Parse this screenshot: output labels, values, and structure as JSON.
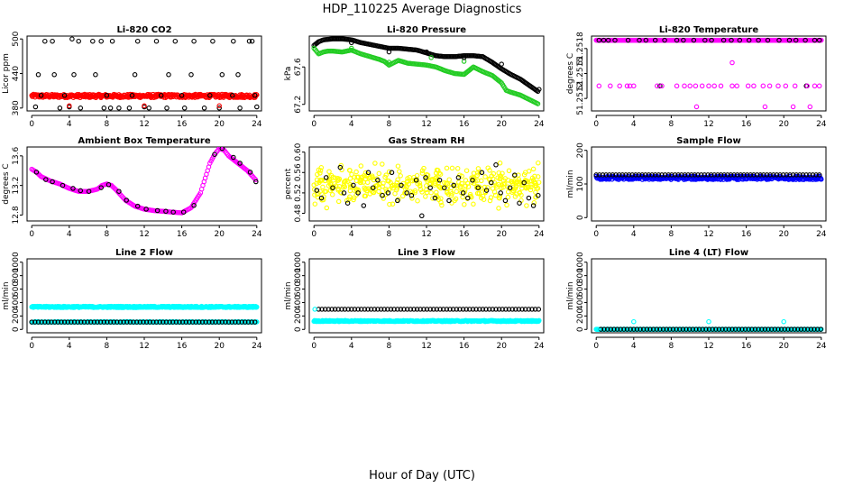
{
  "figure": {
    "title": "HDP_110225  Average Diagnostics",
    "xlabel": "Hour of Day (UTC)"
  },
  "colors": {
    "black": "#000000",
    "red": "#ff0000",
    "green": "#22cc22",
    "magenta": "#ff00ff",
    "yellow": "#ffff00",
    "blue": "#0000ff",
    "cyan": "#00ffff"
  },
  "chart_data": [
    {
      "type": "scatter",
      "title": "Li-820 CO2",
      "ylabel": "Licor ppm",
      "xticks": [
        0,
        4,
        8,
        12,
        16,
        20,
        24
      ],
      "yticks": [
        380,
        440,
        500
      ],
      "ytick_labels": [
        "380",
        "440",
        "500"
      ],
      "xlim": [
        -0.5,
        24.5
      ],
      "ylim": [
        375,
        505
      ],
      "series": [
        {
          "color": "red",
          "kind": "band",
          "x_start": 0,
          "x_end": 24,
          "y": 401,
          "jitter": 3
        },
        {
          "color": "black",
          "kind": "points",
          "x": [
            0.4,
            1.4,
            2.2,
            3.0,
            4.0,
            4.3,
            5.0,
            5.2,
            6.5,
            7.4,
            7.7,
            8.4,
            8.6,
            9.3,
            10.4,
            11.3,
            12.0,
            12.5,
            13.3,
            14.4,
            15.3,
            16.3,
            17.3,
            18.4,
            19.3,
            20.0,
            21.5,
            22.2,
            23.2,
            23.5,
            24.0,
            1.0,
            3.5,
            8.0,
            10.7,
            13.8,
            16.0,
            19.0,
            21.4,
            23.8,
            0.7,
            2.4,
            4.5,
            6.8,
            11.0,
            14.6,
            17.0,
            20.3,
            22.0
          ],
          "y": [
            382,
            496,
            496,
            380,
            382,
            500,
            496,
            380,
            496,
            496,
            380,
            380,
            496,
            380,
            380,
            496,
            382,
            380,
            496,
            380,
            496,
            380,
            496,
            380,
            496,
            380,
            496,
            380,
            496,
            496,
            382,
            402,
            402,
            402,
            402,
            402,
            402,
            402,
            402,
            402,
            438,
            438,
            438,
            438,
            438,
            438,
            438,
            438,
            438
          ]
        },
        {
          "color": "red",
          "kind": "points",
          "x": [
            4.0,
            12.0,
            20.0
          ],
          "y": [
            384,
            384,
            384
          ]
        }
      ]
    },
    {
      "type": "scatter",
      "title": "Li-820 Pressure",
      "ylabel": "kPa",
      "xticks": [
        0,
        4,
        8,
        12,
        16,
        20,
        24
      ],
      "yticks": [
        67.2,
        67.6
      ],
      "ytick_labels": [
        "67.2",
        "67.6"
      ],
      "xlim": [
        -0.5,
        24.5
      ],
      "ylim": [
        67.13,
        67.93
      ],
      "series": [
        {
          "color": "black",
          "kind": "line",
          "x": [
            0,
            0.5,
            1,
            2,
            3,
            4,
            5,
            6,
            7,
            8,
            9,
            10,
            11,
            12,
            13,
            14,
            15,
            16,
            17,
            18,
            19,
            20,
            21,
            22,
            23,
            24
          ],
          "y": [
            67.83,
            67.87,
            67.89,
            67.9,
            67.9,
            67.89,
            67.86,
            67.84,
            67.82,
            67.8,
            67.8,
            67.79,
            67.78,
            67.75,
            67.72,
            67.71,
            67.71,
            67.72,
            67.72,
            67.71,
            67.65,
            67.58,
            67.52,
            67.47,
            67.4,
            67.33
          ]
        },
        {
          "color": "green",
          "kind": "line",
          "x": [
            0,
            0.5,
            1,
            1.5,
            2,
            3,
            4,
            5,
            6,
            7,
            7.5,
            8,
            9,
            10,
            11,
            12,
            13,
            14,
            15,
            16,
            17,
            18,
            19,
            20,
            20.5,
            21,
            22,
            23,
            24
          ],
          "y": [
            67.8,
            67.74,
            67.76,
            67.77,
            67.77,
            67.76,
            67.78,
            67.74,
            67.71,
            67.68,
            67.66,
            67.62,
            67.67,
            67.64,
            67.63,
            67.62,
            67.6,
            67.56,
            67.53,
            67.52,
            67.6,
            67.55,
            67.51,
            67.43,
            67.35,
            67.33,
            67.3,
            67.25,
            67.2
          ]
        },
        {
          "color": "green",
          "kind": "points",
          "x": [
            4.0,
            8.0,
            12.5,
            16.0
          ],
          "y": [
            67.8,
            67.65,
            67.7,
            67.66
          ]
        },
        {
          "color": "black",
          "kind": "points",
          "x": [
            4.0,
            8.0,
            12.0,
            16.0,
            20.0,
            24.0
          ],
          "y": [
            67.86,
            67.76,
            67.76,
            67.7,
            67.63,
            67.36
          ]
        }
      ]
    },
    {
      "type": "scatter",
      "title": "Li-820 Temperature",
      "ylabel": "degrees C",
      "xticks": [
        0,
        4,
        8,
        12,
        16,
        20,
        24
      ],
      "yticks": [
        51.2512,
        51.2515,
        51.2518
      ],
      "ytick_labels": [
        "51.2512",
        "51.2515",
        "51.2518"
      ],
      "xlim": [
        -0.5,
        24.5
      ],
      "ylim": [
        51.25105,
        51.25195
      ],
      "series": [
        {
          "color": "magenta",
          "kind": "band",
          "x_start": 0,
          "x_end": 24,
          "y": 51.2519,
          "jitter": 0
        },
        {
          "color": "black",
          "kind": "points",
          "x": [
            0.3,
            0.8,
            1.3,
            2.0,
            3.4,
            4.6,
            5.3,
            6.3,
            7.3,
            8.6,
            9.3,
            10.4,
            11.6,
            12.3,
            13.6,
            14.4,
            15.3,
            16.3,
            17.3,
            18.3,
            19.5,
            20.6,
            21.3,
            22.3,
            23.3,
            23.8,
            6.8,
            22.4
          ],
          "y": [
            51.2519,
            51.2519,
            51.2519,
            51.2519,
            51.2519,
            51.2519,
            51.2519,
            51.2519,
            51.2519,
            51.2519,
            51.2519,
            51.2519,
            51.2519,
            51.2519,
            51.2519,
            51.2519,
            51.2519,
            51.2519,
            51.2519,
            51.2519,
            51.2519,
            51.2519,
            51.2519,
            51.2519,
            51.2519,
            51.2519,
            51.25135,
            51.25135
          ]
        },
        {
          "color": "magenta",
          "kind": "points",
          "x": [
            0.3,
            1.5,
            2.5,
            3.3,
            3.6,
            4.0,
            6.5,
            7.0,
            8.6,
            9.4,
            10.0,
            10.6,
            11.3,
            12.0,
            12.6,
            13.3,
            14.5,
            15.0,
            16.2,
            16.8,
            17.8,
            18.5,
            19.4,
            20.2,
            21.2,
            22.5,
            23.3,
            23.8,
            10.7,
            14.5,
            18.0,
            21.0,
            22.8
          ],
          "y": [
            51.25135,
            51.25135,
            51.25135,
            51.25135,
            51.25135,
            51.25135,
            51.25135,
            51.25135,
            51.25135,
            51.25135,
            51.25135,
            51.25135,
            51.25135,
            51.25135,
            51.25135,
            51.25135,
            51.25135,
            51.25135,
            51.25135,
            51.25135,
            51.25135,
            51.25135,
            51.25135,
            51.25135,
            51.25135,
            51.25135,
            51.25135,
            51.25135,
            51.2511,
            51.25163,
            51.2511,
            51.2511,
            51.2511
          ]
        }
      ]
    },
    {
      "type": "scatter",
      "title": "Ambient Box Temperature",
      "ylabel": "degrees C",
      "xticks": [
        0,
        4,
        8,
        12,
        16,
        20,
        24
      ],
      "yticks": [
        12.8,
        13.2,
        13.6
      ],
      "ytick_labels": [
        "12.8",
        "13.2",
        "13.6"
      ],
      "xlim": [
        -0.5,
        24.5
      ],
      "ylim": [
        12.72,
        13.72
      ],
      "series": [
        {
          "color": "magenta",
          "kind": "line",
          "x": [
            0,
            0.5,
            1,
            2,
            3,
            4,
            5,
            6,
            7,
            7.5,
            8,
            8.5,
            9,
            10,
            11,
            12,
            13,
            14,
            15,
            16,
            17,
            17.5,
            18,
            18.5,
            19,
            19.5,
            20,
            20.5,
            21,
            22,
            23,
            24
          ],
          "y": [
            13.42,
            13.38,
            13.32,
            13.26,
            13.22,
            13.16,
            13.12,
            13.12,
            13.15,
            13.2,
            13.22,
            13.2,
            13.14,
            13.0,
            12.92,
            12.88,
            12.86,
            12.85,
            12.84,
            12.83,
            12.9,
            13.0,
            13.1,
            13.3,
            13.5,
            13.62,
            13.7,
            13.68,
            13.6,
            13.5,
            13.4,
            13.26
          ]
        },
        {
          "color": "black",
          "kind": "points",
          "x": [
            0.5,
            1.5,
            2.2,
            3.3,
            4.4,
            5.2,
            6.1,
            7.4,
            8.2,
            9.3,
            10.1,
            11.3,
            12.2,
            13.4,
            14.3,
            15.1,
            16.2,
            17.3,
            19.5,
            20.3,
            21.5,
            22.2,
            23.3,
            23.9
          ],
          "y": [
            13.38,
            13.28,
            13.25,
            13.2,
            13.16,
            13.13,
            13.12,
            13.17,
            13.21,
            13.12,
            13.0,
            12.92,
            12.88,
            12.86,
            12.85,
            12.84,
            12.84,
            12.93,
            13.62,
            13.7,
            13.58,
            13.5,
            13.38,
            13.25
          ]
        }
      ]
    },
    {
      "type": "scatter",
      "title": "Gas Stream RH",
      "ylabel": "percent",
      "xticks": [
        0,
        4,
        8,
        12,
        16,
        20,
        24
      ],
      "yticks": [
        0.48,
        0.52,
        0.56,
        0.6
      ],
      "ytick_labels": [
        "0.48",
        "0.52",
        "0.56",
        "0.60"
      ],
      "xlim": [
        -0.5,
        24.5
      ],
      "ylim": [
        0.465,
        0.61
      ],
      "series": [
        {
          "color": "yellow",
          "kind": "cloud",
          "x_start": 0,
          "x_end": 24,
          "center": 0.535,
          "spread": 0.03,
          "count": 420
        },
        {
          "color": "black",
          "kind": "points",
          "x": [
            0.3,
            0.8,
            1.3,
            2.0,
            2.8,
            3.2,
            3.6,
            4.2,
            4.7,
            5.3,
            5.8,
            6.3,
            6.8,
            7.3,
            7.9,
            8.3,
            8.9,
            9.3,
            9.9,
            10.4,
            10.9,
            11.5,
            11.9,
            12.4,
            12.9,
            13.4,
            13.9,
            14.4,
            14.9,
            15.4,
            15.9,
            16.4,
            16.9,
            17.5,
            17.9,
            18.4,
            18.9,
            19.4,
            19.9,
            20.4,
            20.9,
            21.4,
            21.9,
            22.4,
            22.9,
            23.4,
            23.9
          ],
          "y": [
            0.525,
            0.51,
            0.55,
            0.53,
            0.57,
            0.52,
            0.5,
            0.535,
            0.52,
            0.495,
            0.56,
            0.53,
            0.545,
            0.515,
            0.52,
            0.56,
            0.505,
            0.535,
            0.52,
            0.515,
            0.545,
            0.475,
            0.55,
            0.53,
            0.51,
            0.545,
            0.53,
            0.505,
            0.535,
            0.55,
            0.52,
            0.51,
            0.545,
            0.53,
            0.56,
            0.525,
            0.54,
            0.575,
            0.52,
            0.505,
            0.53,
            0.555,
            0.5,
            0.54,
            0.51,
            0.495,
            0.515
          ]
        }
      ]
    },
    {
      "type": "scatter",
      "title": "Sample Flow",
      "ylabel": "ml/min",
      "xticks": [
        0,
        4,
        8,
        12,
        16,
        20,
        24
      ],
      "yticks": [
        0,
        100,
        200
      ],
      "ytick_labels": [
        "0",
        "100",
        "200"
      ],
      "xlim": [
        -0.5,
        24.5
      ],
      "ylim": [
        -10,
        210
      ],
      "series": [
        {
          "color": "blue",
          "kind": "band",
          "x_start": 0,
          "x_end": 24,
          "y": 118,
          "jitter": 5
        },
        {
          "color": "black",
          "kind": "band_points",
          "x_start": 0,
          "x_end": 24,
          "y": 127,
          "step": 0.35
        }
      ]
    },
    {
      "type": "scatter",
      "title": "Line 2 Flow",
      "ylabel": "ml/min",
      "xticks": [
        0,
        4,
        8,
        12,
        16,
        20,
        24
      ],
      "yticks": [
        0,
        200,
        400,
        600,
        800,
        1000
      ],
      "ytick_labels": [
        "0",
        "200",
        "400",
        "600",
        "800",
        "1000"
      ],
      "xlim": [
        -0.5,
        24.5
      ],
      "ylim": [
        -50,
        1050
      ],
      "series": [
        {
          "color": "cyan",
          "kind": "band",
          "x_start": 0,
          "x_end": 24,
          "y": 335,
          "jitter": 10
        },
        {
          "color": "cyan",
          "kind": "band",
          "x_start": 0,
          "x_end": 24,
          "y": 110,
          "jitter": 4
        },
        {
          "color": "black",
          "kind": "band_points",
          "x_start": 0,
          "x_end": 24,
          "y": 110,
          "step": 0.35
        }
      ]
    },
    {
      "type": "scatter",
      "title": "Line 3 Flow",
      "ylabel": "ml/min",
      "xticks": [
        0,
        4,
        8,
        12,
        16,
        20,
        24
      ],
      "yticks": [
        0,
        200,
        400,
        600,
        800,
        1000
      ],
      "ytick_labels": [
        "0",
        "200",
        "400",
        "600",
        "800",
        "1000"
      ],
      "xlim": [
        -0.5,
        24.5
      ],
      "ylim": [
        -50,
        1050
      ],
      "series": [
        {
          "color": "cyan",
          "kind": "band",
          "x_start": 0,
          "x_end": 24,
          "y": 125,
          "jitter": 8
        },
        {
          "color": "black",
          "kind": "band_points",
          "x_start": 0.5,
          "x_end": 24,
          "y": 300,
          "step": 0.35
        },
        {
          "color": "cyan",
          "kind": "points",
          "x": [
            0.1
          ],
          "y": [
            300
          ]
        }
      ]
    },
    {
      "type": "scatter",
      "title": "Line 4 (LT) Flow",
      "ylabel": "ml/min",
      "xticks": [
        0,
        4,
        8,
        12,
        16,
        20,
        24
      ],
      "yticks": [
        0,
        200,
        400,
        600,
        800,
        1000
      ],
      "ytick_labels": [
        "0",
        "200",
        "400",
        "600",
        "800",
        "1000"
      ],
      "xlim": [
        -0.5,
        24.5
      ],
      "ylim": [
        -50,
        1050
      ],
      "series": [
        {
          "color": "cyan",
          "kind": "band",
          "x_start": 0,
          "x_end": 24,
          "y": 2,
          "jitter": 1
        },
        {
          "color": "black",
          "kind": "band_points",
          "x_start": 0.5,
          "x_end": 24,
          "y": 2,
          "step": 0.35
        },
        {
          "color": "cyan",
          "kind": "points",
          "x": [
            0.1,
            4.0,
            12.0,
            20.0
          ],
          "y": [
            2,
            115,
            115,
            115
          ]
        }
      ]
    }
  ]
}
